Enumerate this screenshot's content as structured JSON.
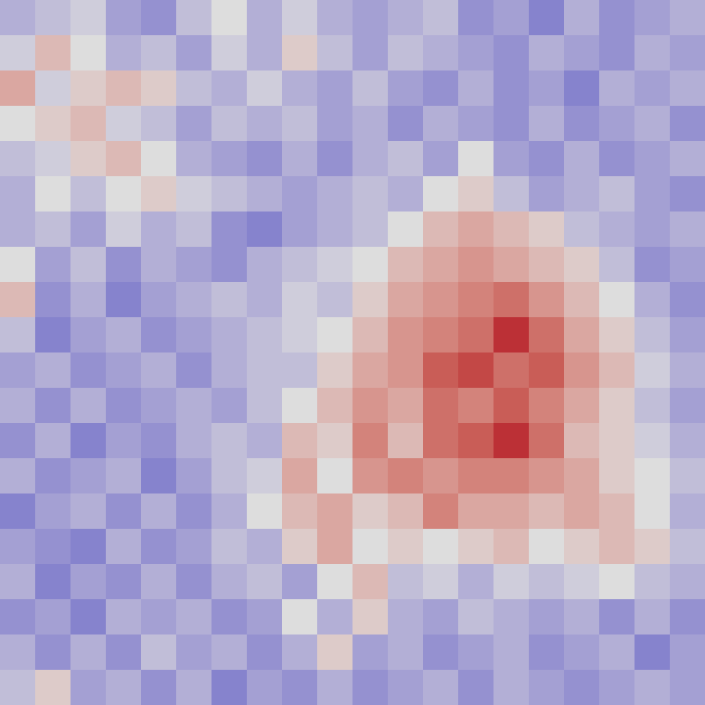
{
  "chart_data": {
    "type": "heatmap",
    "color": "coolwarm",
    "tick_labels": false,
    "zlim": [
      -1,
      1
    ],
    "cells": [
      [
        -0.3,
        -0.2,
        -0.1,
        -0.4,
        -0.5,
        -0.2,
        0.0,
        -0.3,
        -0.1,
        -0.3,
        -0.4,
        -0.3,
        -0.2,
        -0.5,
        -0.4,
        -0.6,
        -0.3,
        -0.5,
        -0.4,
        -0.3
      ],
      [
        -0.1,
        0.2,
        0.0,
        -0.3,
        -0.2,
        -0.4,
        -0.1,
        -0.3,
        0.1,
        -0.2,
        -0.4,
        -0.2,
        -0.3,
        -0.4,
        -0.5,
        -0.3,
        -0.4,
        -0.5,
        -0.3,
        -0.4
      ],
      [
        0.3,
        -0.1,
        0.1,
        0.2,
        0.1,
        -0.2,
        -0.3,
        -0.1,
        -0.3,
        -0.4,
        -0.2,
        -0.4,
        -0.5,
        -0.3,
        -0.5,
        -0.4,
        -0.6,
        -0.3,
        -0.4,
        -0.3
      ],
      [
        0.0,
        0.1,
        0.2,
        -0.1,
        -0.2,
        -0.4,
        -0.2,
        -0.3,
        -0.2,
        -0.4,
        -0.3,
        -0.5,
        -0.3,
        -0.4,
        -0.5,
        -0.3,
        -0.5,
        -0.4,
        -0.3,
        -0.5
      ],
      [
        -0.2,
        -0.1,
        0.1,
        0.2,
        0.0,
        -0.3,
        -0.4,
        -0.5,
        -0.3,
        -0.5,
        -0.3,
        -0.2,
        -0.4,
        0.0,
        -0.4,
        -0.5,
        -0.3,
        -0.5,
        -0.4,
        -0.3
      ],
      [
        -0.3,
        0.0,
        -0.2,
        0.0,
        0.1,
        -0.1,
        -0.2,
        -0.3,
        -0.4,
        -0.3,
        -0.2,
        -0.3,
        0.0,
        0.1,
        -0.2,
        -0.4,
        -0.3,
        -0.2,
        -0.4,
        -0.5
      ],
      [
        -0.3,
        -0.2,
        -0.4,
        -0.1,
        -0.3,
        -0.2,
        -0.5,
        -0.6,
        -0.4,
        -0.3,
        -0.2,
        0.0,
        0.2,
        0.3,
        0.2,
        0.1,
        -0.2,
        -0.3,
        -0.4,
        -0.3
      ],
      [
        0.0,
        -0.4,
        -0.2,
        -0.5,
        -0.3,
        -0.4,
        -0.5,
        -0.3,
        -0.2,
        -0.1,
        0.0,
        0.2,
        0.3,
        0.4,
        0.3,
        0.2,
        0.1,
        -0.2,
        -0.5,
        -0.4
      ],
      [
        0.2,
        -0.5,
        -0.3,
        -0.6,
        -0.4,
        -0.3,
        -0.2,
        -0.3,
        -0.1,
        -0.2,
        0.1,
        0.3,
        0.4,
        0.5,
        0.6,
        0.4,
        0.2,
        0.0,
        -0.3,
        -0.5
      ],
      [
        -0.2,
        -0.6,
        -0.4,
        -0.3,
        -0.5,
        -0.4,
        -0.3,
        -0.2,
        -0.1,
        0.0,
        0.2,
        0.4,
        0.5,
        0.6,
        0.9,
        0.6,
        0.3,
        0.1,
        -0.2,
        -0.4
      ],
      [
        -0.4,
        -0.3,
        -0.5,
        -0.4,
        -0.3,
        -0.5,
        -0.3,
        -0.2,
        -0.2,
        0.1,
        0.3,
        0.4,
        0.7,
        0.8,
        0.6,
        0.7,
        0.4,
        0.2,
        -0.1,
        -0.3
      ],
      [
        -0.3,
        -0.5,
        -0.3,
        -0.5,
        -0.4,
        -0.3,
        -0.4,
        -0.2,
        0.0,
        0.2,
        0.4,
        0.3,
        0.6,
        0.5,
        0.7,
        0.5,
        0.3,
        0.1,
        -0.2,
        -0.4
      ],
      [
        -0.5,
        -0.3,
        -0.6,
        -0.4,
        -0.5,
        -0.3,
        -0.2,
        -0.3,
        0.2,
        0.1,
        0.5,
        0.2,
        0.6,
        0.7,
        0.9,
        0.6,
        0.2,
        0.1,
        -0.1,
        -0.3
      ],
      [
        -0.3,
        -0.5,
        -0.4,
        -0.3,
        -0.6,
        -0.4,
        -0.2,
        -0.1,
        0.3,
        0.0,
        0.4,
        0.5,
        0.4,
        0.5,
        0.5,
        0.4,
        0.3,
        0.1,
        0.0,
        -0.2
      ],
      [
        -0.6,
        -0.4,
        -0.3,
        -0.5,
        -0.3,
        -0.5,
        -0.3,
        0.0,
        0.2,
        0.3,
        0.1,
        0.2,
        0.5,
        0.3,
        0.3,
        0.2,
        0.3,
        0.2,
        0.0,
        -0.3
      ],
      [
        -0.4,
        -0.5,
        -0.6,
        -0.3,
        -0.5,
        -0.4,
        -0.2,
        -0.3,
        0.1,
        0.3,
        0.0,
        0.1,
        0.0,
        0.1,
        0.2,
        0.0,
        0.1,
        0.2,
        0.1,
        -0.2
      ],
      [
        -0.3,
        -0.6,
        -0.4,
        -0.5,
        -0.3,
        -0.5,
        -0.3,
        -0.2,
        -0.4,
        0.0,
        0.2,
        -0.2,
        -0.1,
        -0.3,
        -0.1,
        -0.2,
        -0.1,
        0.0,
        -0.2,
        -0.3
      ],
      [
        -0.5,
        -0.4,
        -0.6,
        -0.3,
        -0.4,
        -0.3,
        -0.5,
        -0.4,
        0.0,
        -0.3,
        0.1,
        -0.3,
        -0.4,
        -0.2,
        -0.3,
        -0.4,
        -0.3,
        -0.5,
        -0.3,
        -0.5
      ],
      [
        -0.3,
        -0.5,
        -0.3,
        -0.5,
        -0.2,
        -0.4,
        -0.3,
        -0.5,
        -0.3,
        0.1,
        -0.4,
        -0.3,
        -0.5,
        -0.4,
        -0.3,
        -0.5,
        -0.4,
        -0.3,
        -0.6,
        -0.4
      ],
      [
        -0.2,
        0.1,
        -0.4,
        -0.3,
        -0.5,
        -0.3,
        -0.6,
        -0.4,
        -0.5,
        -0.3,
        -0.5,
        -0.4,
        -0.3,
        -0.5,
        -0.3,
        -0.4,
        -0.5,
        -0.4,
        -0.3,
        -0.4
      ]
    ]
  }
}
